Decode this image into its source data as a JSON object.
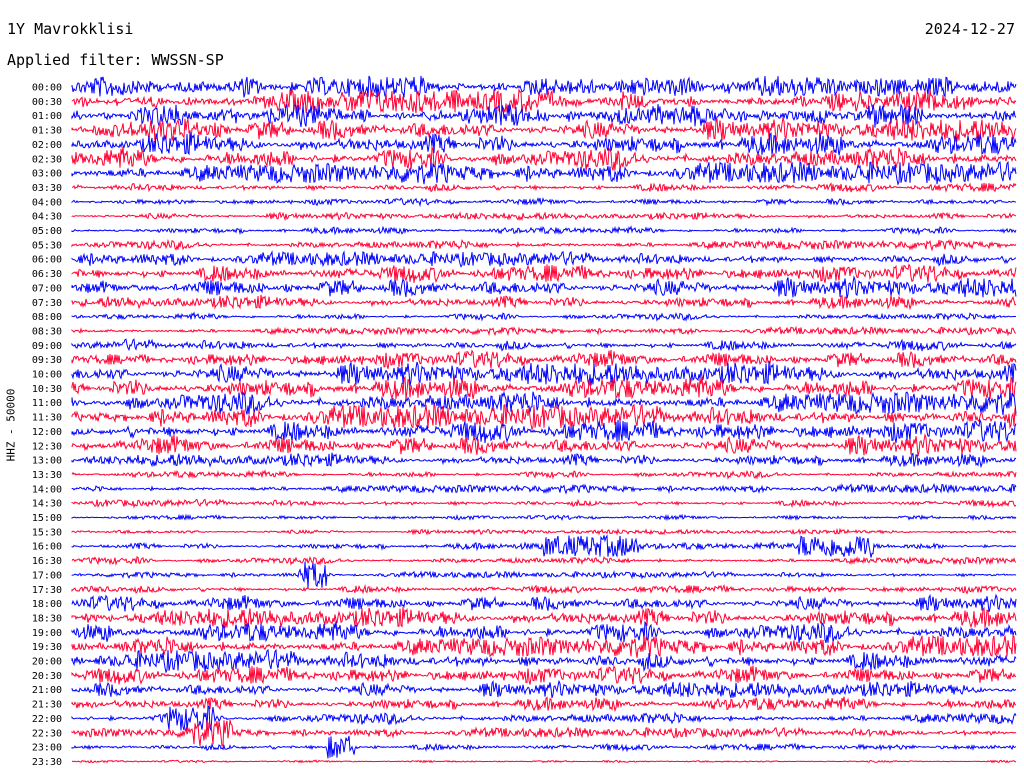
{
  "header": {
    "station": "1Y Mavrokklisi",
    "date": "2024-12-27",
    "filter": "Applied filter: WWSSN-SP"
  },
  "chart_data": {
    "type": "line",
    "title": "1Y Mavrokklisi",
    "subtitle": "Applied filter: WWSSN-SP",
    "ylabel": "HHZ - 50000",
    "xlabel": "",
    "row_times": [
      "00:00",
      "00:30",
      "01:00",
      "01:30",
      "02:00",
      "02:30",
      "03:00",
      "03:30",
      "04:00",
      "04:30",
      "05:00",
      "05:30",
      "06:00",
      "06:30",
      "07:00",
      "07:30",
      "08:00",
      "08:30",
      "09:00",
      "09:30",
      "10:00",
      "10:30",
      "11:00",
      "11:30",
      "12:00",
      "12:30",
      "13:00",
      "13:30",
      "14:00",
      "14:30",
      "15:00",
      "15:30",
      "16:00",
      "16:30",
      "17:00",
      "17:30",
      "18:00",
      "18:30",
      "19:00",
      "19:30",
      "20:00",
      "20:30",
      "21:00",
      "21:30",
      "22:00",
      "22:30",
      "23:00",
      "23:30"
    ],
    "trace_colors": [
      "#0000ff",
      "#ff0033"
    ],
    "relative_amplitude": [
      0.9,
      1.0,
      1.0,
      1.0,
      1.0,
      1.0,
      0.9,
      0.4,
      0.3,
      0.3,
      0.3,
      0.4,
      0.6,
      0.8,
      0.9,
      0.6,
      0.3,
      0.3,
      0.5,
      0.8,
      1.0,
      1.0,
      1.0,
      1.0,
      1.0,
      0.9,
      0.6,
      0.3,
      0.35,
      0.3,
      0.2,
      0.2,
      0.3,
      0.3,
      0.25,
      0.35,
      0.7,
      0.9,
      0.9,
      0.9,
      0.9,
      0.8,
      0.7,
      0.6,
      0.5,
      0.4,
      0.3,
      0.1
    ],
    "events": [
      {
        "row": 32,
        "start": 0.5,
        "end": 0.6,
        "amp": 1.2
      },
      {
        "row": 32,
        "start": 0.77,
        "end": 0.85,
        "amp": 1.3
      },
      {
        "row": 34,
        "start": 0.24,
        "end": 0.27,
        "amp": 1.5
      },
      {
        "row": 44,
        "start": 0.1,
        "end": 0.15,
        "amp": 1.4
      },
      {
        "row": 45,
        "start": 0.12,
        "end": 0.17,
        "amp": 1.5
      },
      {
        "row": 46,
        "start": 0.27,
        "end": 0.3,
        "amp": 1.3
      }
    ],
    "grid": false,
    "legend": "none"
  }
}
